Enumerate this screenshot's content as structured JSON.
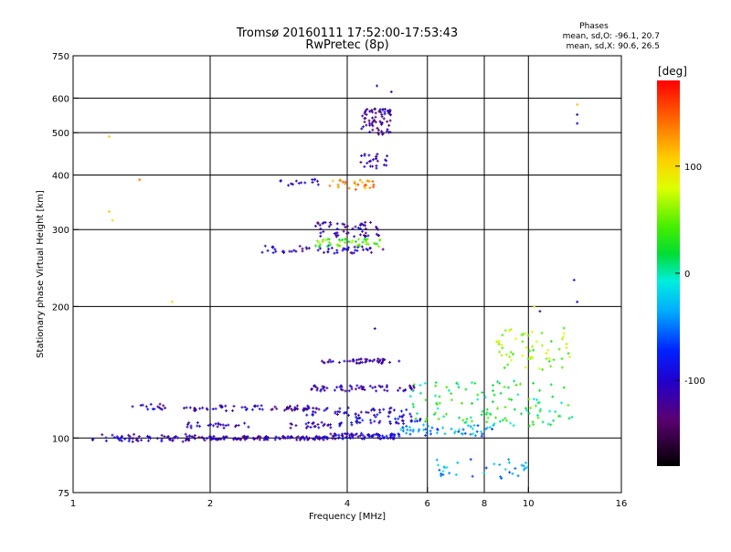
{
  "chart_data": {
    "type": "scatter",
    "title": "Tromsø 20160111 17:52:00-17:53:43",
    "subtitle": "RwPretec (8p)",
    "xlabel": "Frequency [MHz]",
    "ylabel": "Stationary phase Virtual Height [km]",
    "x_scale": "log",
    "y_scale": "log",
    "xlim": [
      1,
      16
    ],
    "ylim": [
      75,
      750
    ],
    "x_ticks": [
      1,
      2,
      4,
      6,
      8,
      10,
      16
    ],
    "x_tick_labels": [
      "1",
      "2",
      "4",
      "6",
      "8",
      "10",
      "16"
    ],
    "y_ticks": [
      75,
      100,
      200,
      300,
      400,
      500,
      600,
      750
    ],
    "y_tick_labels": [
      "75",
      "100",
      "200",
      "300",
      "400",
      "500",
      "600",
      "750"
    ],
    "grid": true,
    "phases_header": "Phases",
    "phase_stats": [
      "mean, sd,O: -96.1, 20.7",
      "mean, sd,X:  90.6, 26.5"
    ],
    "colorbar": {
      "label": "[deg]",
      "range": [
        -180,
        180
      ],
      "ticks": [
        100,
        0,
        -100
      ],
      "tick_labels": [
        "100",
        "0",
        "-100"
      ],
      "colormap": "rainbow-black-purple-blue-cyan-green-yellow-orange-red"
    },
    "traces": [
      {
        "name": "",
        "x_range": [
          1.1,
          2.0
        ],
        "y": 100,
        "count": 70,
        "phase": -110,
        "spread": 0.02
      },
      {
        "name": "",
        "x_range": [
          2.0,
          3.6
        ],
        "y": 100,
        "count": 110,
        "phase": -110,
        "spread": 0.01
      },
      {
        "name": "",
        "x_range": [
          3.6,
          5.2
        ],
        "y": 101,
        "count": 80,
        "phase": -100,
        "spread": 0.015
      },
      {
        "name": "",
        "x_range": [
          5.2,
          8.5
        ],
        "y": 104,
        "count": 55,
        "phase": -40,
        "spread": 0.03
      },
      {
        "name": "",
        "x_range": [
          1.75,
          2.45
        ],
        "y": 107,
        "count": 25,
        "phase": -110,
        "spread": 0.015
      },
      {
        "name": "",
        "x_range": [
          1.75,
          3.4
        ],
        "y": 117,
        "count": 55,
        "phase": -110,
        "spread": 0.015
      },
      {
        "name": "",
        "x_range": [
          1.35,
          1.6
        ],
        "y": 118,
        "count": 15,
        "phase": -110,
        "spread": 0.015
      },
      {
        "name": "",
        "x_range": [
          3.0,
          5.5
        ],
        "y": 115,
        "count": 60,
        "phase": -105,
        "spread": 0.02
      },
      {
        "name": "",
        "x_range": [
          3.0,
          4.1
        ],
        "y": 107,
        "count": 30,
        "phase": -110,
        "spread": 0.015
      },
      {
        "name": "",
        "x_range": [
          4.0,
          5.8
        ],
        "y": 110,
        "count": 40,
        "phase": -90,
        "spread": 0.02
      },
      {
        "name": "",
        "x_range": [
          3.3,
          5.7
        ],
        "y": 130,
        "count": 60,
        "phase": -110,
        "spread": 0.015
      },
      {
        "name": "",
        "x_range": [
          3.5,
          5.0
        ],
        "y": 150,
        "count": 45,
        "phase": -115,
        "spread": 0.012
      },
      {
        "name": "",
        "x_range": [
          2.6,
          4.8
        ],
        "y": 270,
        "count": 55,
        "phase": -105,
        "spread": 0.02
      },
      {
        "name": "",
        "x_range": [
          3.4,
          4.8
        ],
        "y": 280,
        "count": 45,
        "phase": 40,
        "spread": 0.02
      },
      {
        "name": "",
        "x_range": [
          3.4,
          4.7
        ],
        "y": 300,
        "count": 55,
        "phase": -115,
        "spread": 0.04
      },
      {
        "name": "",
        "x_range": [
          3.6,
          4.6
        ],
        "y": 380,
        "count": 30,
        "phase": 130,
        "spread": 0.025
      },
      {
        "name": "",
        "x_range": [
          2.8,
          3.5
        ],
        "y": 385,
        "count": 15,
        "phase": -100,
        "spread": 0.02
      },
      {
        "name": "",
        "x_range": [
          4.3,
          5.0
        ],
        "y": 530,
        "count": 70,
        "phase": -120,
        "spread": 0.07
      },
      {
        "name": "",
        "x_range": [
          4.2,
          4.9
        ],
        "y": 430,
        "count": 25,
        "phase": -110,
        "spread": 0.04
      },
      {
        "name": "",
        "x_range": [
          5.5,
          12.5
        ],
        "y": 120,
        "count": 120,
        "phase": 20,
        "spread": 0.12
      },
      {
        "name": "",
        "x_range": [
          8.5,
          12.5
        ],
        "y": 160,
        "count": 60,
        "phase": 60,
        "spread": 0.11
      },
      {
        "name": "",
        "x_range": [
          6.0,
          10.0
        ],
        "y": 85,
        "count": 35,
        "phase": -40,
        "spread": 0.05
      }
    ],
    "scattered_points": [
      {
        "x": 1.2,
        "y": 490,
        "phase": 110
      },
      {
        "x": 1.2,
        "y": 330,
        "phase": 110
      },
      {
        "x": 1.22,
        "y": 315,
        "phase": 100
      },
      {
        "x": 1.4,
        "y": 390,
        "phase": 140
      },
      {
        "x": 1.65,
        "y": 205,
        "phase": 100
      },
      {
        "x": 12.8,
        "y": 580,
        "phase": 110
      },
      {
        "x": 12.8,
        "y": 550,
        "phase": -110
      },
      {
        "x": 12.8,
        "y": 525,
        "phase": -110
      },
      {
        "x": 10.3,
        "y": 200,
        "phase": 100
      },
      {
        "x": 10.6,
        "y": 195,
        "phase": -120
      },
      {
        "x": 12.6,
        "y": 230,
        "phase": -110
      },
      {
        "x": 12.8,
        "y": 205,
        "phase": -100
      },
      {
        "x": 4.65,
        "y": 640,
        "phase": -110
      },
      {
        "x": 5.0,
        "y": 620,
        "phase": -120
      },
      {
        "x": 4.6,
        "y": 178,
        "phase": -100
      },
      {
        "x": 5.2,
        "y": 150,
        "phase": -100
      }
    ]
  }
}
